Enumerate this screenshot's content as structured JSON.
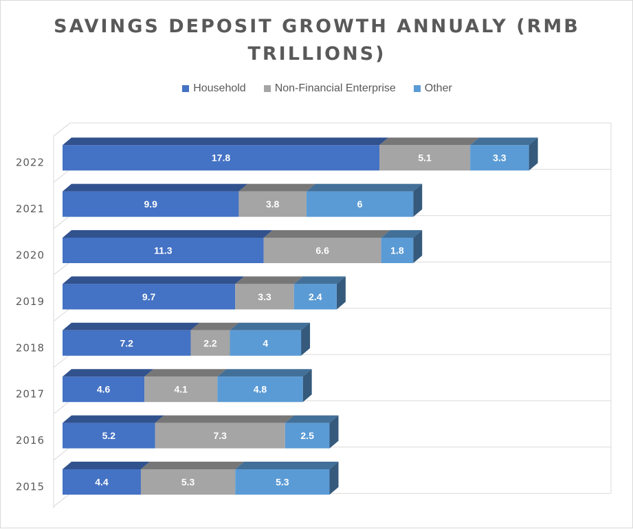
{
  "chart_data": {
    "type": "bar",
    "orientation": "horizontal",
    "stacked": true,
    "title": "SAVINGS DEPOSIT GROWTH ANNUALY (RMB TRILLIONS)",
    "categories": [
      "2015",
      "2016",
      "2017",
      "2018",
      "2019",
      "2020",
      "2021",
      "2022"
    ],
    "series": [
      {
        "name": "Household",
        "color": "#4472c4",
        "values": [
          4.4,
          5.2,
          4.6,
          7.2,
          9.7,
          11.3,
          9.9,
          17.8
        ]
      },
      {
        "name": "Non-Financial Enterprise",
        "color": "#a5a5a5",
        "values": [
          5.3,
          7.3,
          4.1,
          2.2,
          3.3,
          6.6,
          3.8,
          5.1
        ]
      },
      {
        "name": "Other",
        "color": "#5b9bd5",
        "values": [
          5.3,
          2.5,
          4.8,
          4,
          2.4,
          1.8,
          6,
          3.3
        ]
      }
    ],
    "legend_position": "top",
    "grid": true,
    "style": "3d"
  }
}
